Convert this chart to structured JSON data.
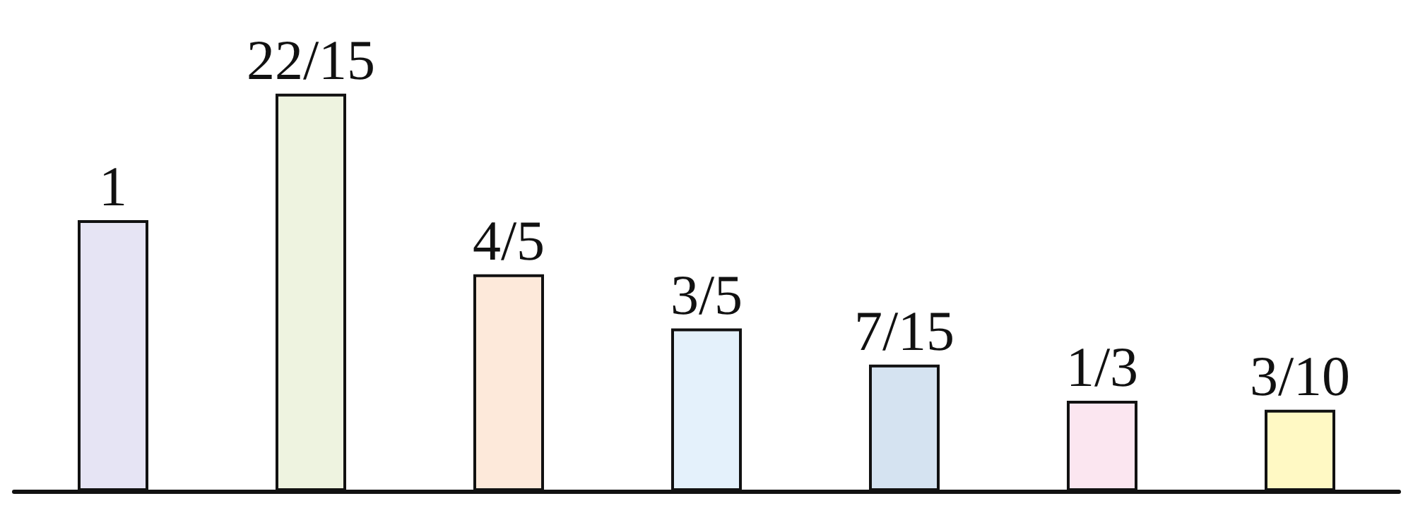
{
  "chart_data": {
    "type": "bar",
    "categories": [
      null,
      null,
      null,
      null,
      null,
      null,
      null
    ],
    "values": [
      1,
      1.4667,
      0.8,
      0.6,
      0.4667,
      0.3333,
      0.3
    ],
    "value_labels": [
      "1",
      "22/15",
      "4/5",
      "3/5",
      "7/15",
      "1/3",
      "3/10"
    ],
    "colors": [
      "#e6e4f4",
      "#eef3e0",
      "#fde9da",
      "#e4f1fb",
      "#d5e3f1",
      "#fbe6f0",
      "#fff9c4"
    ]
  }
}
